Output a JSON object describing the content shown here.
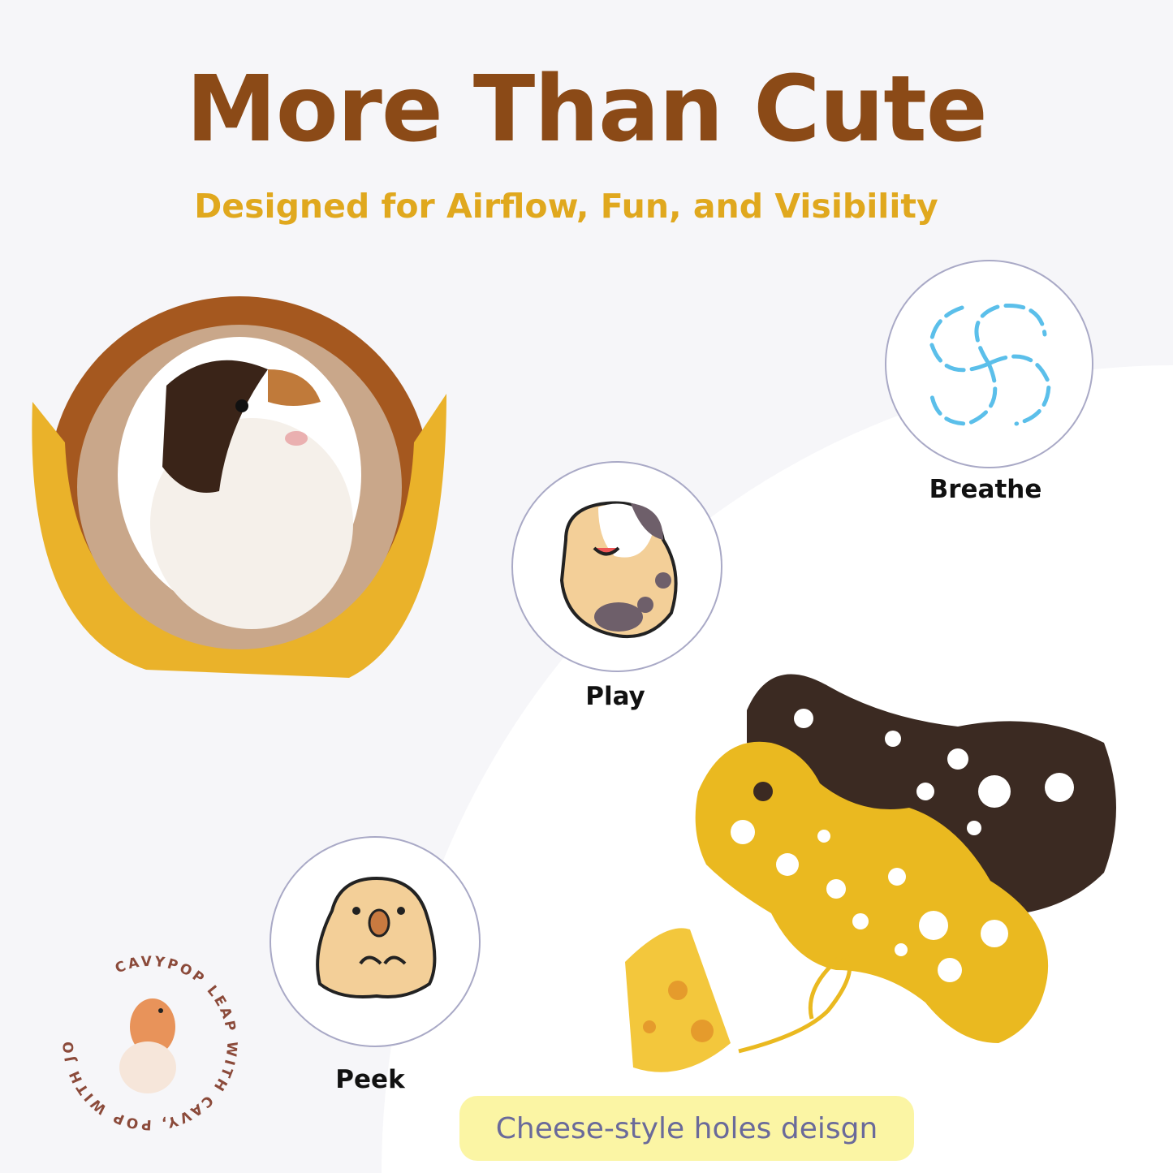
{
  "header": {
    "title": "More Than Cute",
    "subtitle": "Designed for Airflow, Fun, and Visibility"
  },
  "features": [
    {
      "label": "Breathe",
      "icon": "airflow-swirl-icon"
    },
    {
      "label": "Play",
      "icon": "guinea-pig-playing-icon"
    },
    {
      "label": "Peek",
      "icon": "guinea-pig-peeking-icon"
    }
  ],
  "caption": "Cheese-style holes deisgn",
  "logo": {
    "name": "CAVYPOP",
    "slogan": "LEAP WITH CAVY, POP WITH JOY"
  },
  "colors": {
    "title": "#8b4a17",
    "subtitle": "#e0a81e",
    "caption_bg": "#fbf5a4",
    "swirl": "#5bbfea"
  }
}
